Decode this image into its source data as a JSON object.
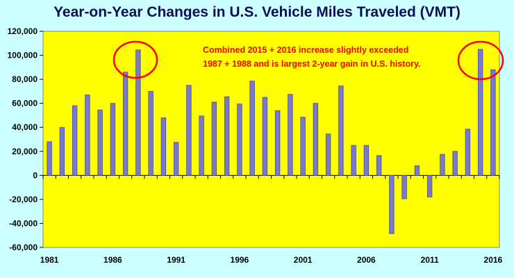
{
  "chart_data": {
    "type": "bar",
    "title": "Year-on-Year Changes in U.S. Vehicle Miles Traveled (VMT)",
    "xlabel": "",
    "ylabel": "",
    "ylim": [
      -60000,
      120000
    ],
    "yticks": [
      120000,
      100000,
      80000,
      60000,
      40000,
      20000,
      0,
      -20000,
      -40000,
      -60000
    ],
    "ytick_labels": [
      "120,000",
      "100,000",
      "80,000",
      "60,000",
      "40,000",
      "20,000",
      "0",
      "-20,000",
      "-40,000",
      "-60,000"
    ],
    "xtick_labels": [
      "1981",
      "1986",
      "1991",
      "1996",
      "2001",
      "2006",
      "2011",
      "2016"
    ],
    "grid": false,
    "categories": [
      "1981",
      "1982",
      "1983",
      "1984",
      "1985",
      "1986",
      "1987",
      "1988",
      "1989",
      "1990",
      "1991",
      "1992",
      "1993",
      "1994",
      "1995",
      "1996",
      "1997",
      "1998",
      "1999",
      "2000",
      "2001",
      "2002",
      "2003",
      "2004",
      "2005",
      "2006",
      "2007",
      "2008",
      "2009",
      "2010",
      "2011",
      "2012",
      "2013",
      "2014",
      "2015",
      "2016"
    ],
    "values": [
      28000,
      40000,
      58000,
      67000,
      54500,
      60000,
      86000,
      104500,
      70000,
      48000,
      27500,
      75000,
      49500,
      61000,
      65500,
      59500,
      78500,
      65000,
      54000,
      67500,
      48500,
      60000,
      34500,
      74500,
      25000,
      25000,
      16500,
      -48500,
      -19500,
      8000,
      -18000,
      17500,
      20000,
      38500,
      105000,
      88000
    ],
    "annotation": {
      "lines": [
        "Combined 2015 + 2016 increase slightly exceeded",
        "1987 + 1988 and is largest 2-year gain in U.S. history."
      ]
    },
    "colors": {
      "plot_background": "#ffff00",
      "page_background": "#ccffff",
      "bar_fill": "#7a7acc",
      "bar_edge": "#4d4d99",
      "annotation": "#ff0000",
      "title": "#0c0c5a"
    }
  }
}
